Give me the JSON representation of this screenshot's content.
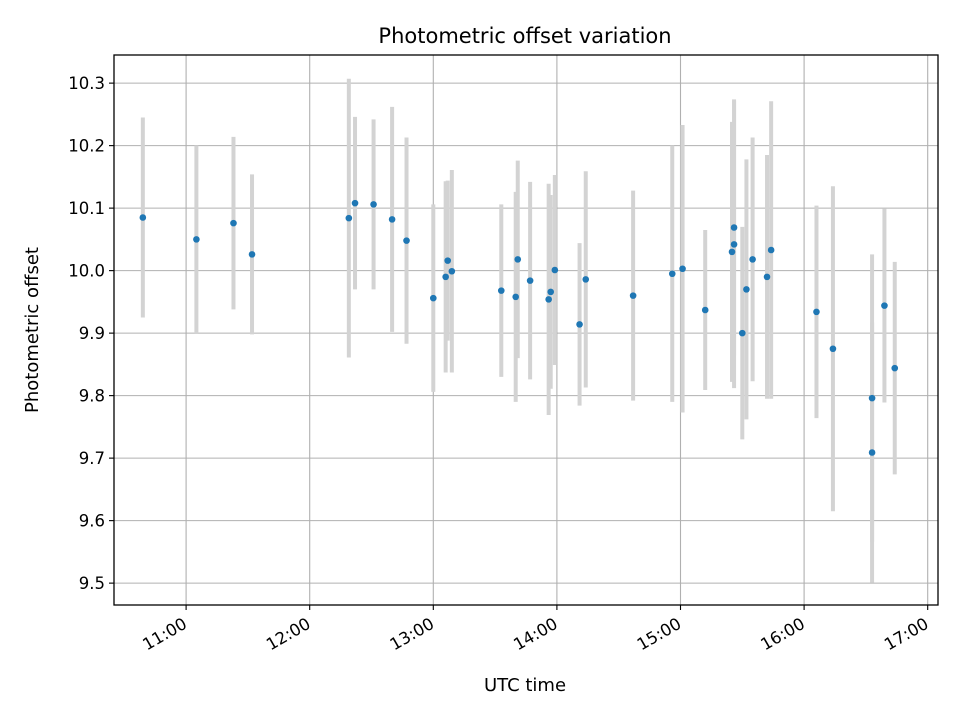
{
  "chart_data": {
    "type": "scatter",
    "title": "Photometric offset variation",
    "xlabel": "UTC time",
    "ylabel": "Photometric offset",
    "xlim": [
      "10:25",
      "17:05"
    ],
    "ylim": [
      9.465,
      10.345
    ],
    "x_ticks": [
      "11:00",
      "12:00",
      "13:00",
      "14:00",
      "15:00",
      "16:00",
      "17:00"
    ],
    "y_ticks": [
      "9.5",
      "9.6",
      "9.7",
      "9.8",
      "9.9",
      "10.0",
      "10.1",
      "10.2",
      "10.3"
    ],
    "grid": true,
    "colors": {
      "points": "#1f77b4",
      "errorbars": "#d3d3d3",
      "grid": "#b0b0b0"
    },
    "points": [
      {
        "x": "10:39",
        "y": 10.085,
        "err": 0.16
      },
      {
        "x": "11:05",
        "y": 10.05,
        "err": 0.15
      },
      {
        "x": "11:23",
        "y": 10.076,
        "err": 0.138
      },
      {
        "x": "11:32",
        "y": 10.026,
        "err": 0.128
      },
      {
        "x": "12:19",
        "y": 10.084,
        "err": 0.223
      },
      {
        "x": "12:22",
        "y": 10.108,
        "err": 0.138
      },
      {
        "x": "12:31",
        "y": 10.106,
        "err": 0.136
      },
      {
        "x": "12:40",
        "y": 10.082,
        "err": 0.18
      },
      {
        "x": "12:47",
        "y": 10.048,
        "err": 0.165
      },
      {
        "x": "13:00",
        "y": 9.956,
        "err": 0.15
      },
      {
        "x": "13:06",
        "y": 9.99,
        "err": 0.153
      },
      {
        "x": "13:07",
        "y": 10.016,
        "err": 0.128
      },
      {
        "x": "13:09",
        "y": 9.999,
        "err": 0.162
      },
      {
        "x": "13:33",
        "y": 9.968,
        "err": 0.138
      },
      {
        "x": "13:40",
        "y": 9.958,
        "err": 0.168
      },
      {
        "x": "13:41",
        "y": 10.018,
        "err": 0.158
      },
      {
        "x": "13:47",
        "y": 9.984,
        "err": 0.158
      },
      {
        "x": "13:56",
        "y": 9.954,
        "err": 0.185
      },
      {
        "x": "13:57",
        "y": 9.966,
        "err": 0.155
      },
      {
        "x": "13:59",
        "y": 10.001,
        "err": 0.152
      },
      {
        "x": "14:11",
        "y": 9.914,
        "err": 0.13
      },
      {
        "x": "14:14",
        "y": 9.986,
        "err": 0.173
      },
      {
        "x": "14:37",
        "y": 9.96,
        "err": 0.168
      },
      {
        "x": "14:56",
        "y": 9.995,
        "err": 0.205
      },
      {
        "x": "15:01",
        "y": 10.003,
        "err": 0.23
      },
      {
        "x": "15:12",
        "y": 9.937,
        "err": 0.128
      },
      {
        "x": "15:25",
        "y": 10.03,
        "err": 0.208
      },
      {
        "x": "15:26",
        "y": 10.069,
        "err": 0.205
      },
      {
        "x": "15:26",
        "y": 10.042,
        "err": 0.23
      },
      {
        "x": "15:30",
        "y": 9.9,
        "err": 0.17
      },
      {
        "x": "15:32",
        "y": 9.97,
        "err": 0.208
      },
      {
        "x": "15:35",
        "y": 10.018,
        "err": 0.195
      },
      {
        "x": "15:42",
        "y": 9.99,
        "err": 0.195
      },
      {
        "x": "15:44",
        "y": 10.033,
        "err": 0.238
      },
      {
        "x": "16:06",
        "y": 9.934,
        "err": 0.17
      },
      {
        "x": "16:14",
        "y": 9.875,
        "err": 0.26
      },
      {
        "x": "16:33",
        "y": 9.796,
        "err": 0.23
      },
      {
        "x": "16:33",
        "y": 9.709,
        "err": 0.208
      },
      {
        "x": "16:39",
        "y": 9.944,
        "err": 0.155
      },
      {
        "x": "16:44",
        "y": 9.844,
        "err": 0.17
      }
    ]
  }
}
